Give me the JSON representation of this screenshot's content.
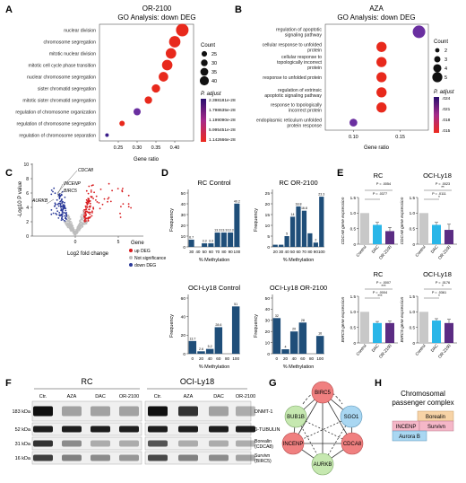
{
  "colors": {
    "bar_blue": "#1f4e79",
    "pt_red": "#e8291c",
    "pt_purple": "#6a2fa0",
    "ctrl_gray": "#c8c8c8",
    "dac_cyan": "#29b6e8",
    "or_purple": "#5b2c83",
    "up_red": "#d7191c",
    "down_blue": "#2b3a99",
    "ns_gray": "#bdbdbd",
    "net_red": "#f08080",
    "net_green": "#c6e8b0",
    "net_blue": "#a9d7f2",
    "cpc_blue": "#a9d7f2",
    "cpc_pink": "#f5b7c8",
    "cpc_orange": "#f7d3a6"
  },
  "panelA": {
    "letter": "A",
    "title1": "OR-2100",
    "title2": "GO Analysis: down DEG",
    "xlabel": "Gene ratio",
    "xticks": [
      "0.25",
      "0.30",
      "0.35",
      "0.40"
    ],
    "size_legend_title": "Count",
    "size_legend": [
      "25",
      "30",
      "35",
      "40"
    ],
    "color_legend_title": "P. adjust",
    "color_legend": [
      "2.398181e-28",
      "1.798635e-28",
      "1.199090e-28",
      "5.995451e-28",
      "1.142666e-28"
    ],
    "chart_data": {
      "type": "scatter",
      "title": "GO Analysis: down DEG",
      "xlabel": "Gene ratio",
      "xlim": [
        0.2,
        0.45
      ],
      "categories": [
        "nuclear division",
        "chromosome segregation",
        "mitotic nuclear division",
        "mitotic cell cycle phase transition",
        "nuclear chromosome segregation",
        "sister chromatid segregation",
        "mitotic sister chromatid segregation",
        "regulation of chromosome organization",
        "regulation of chromosome segregation",
        "regulation of chromosome separation"
      ],
      "x": [
        0.42,
        0.4,
        0.39,
        0.38,
        0.37,
        0.35,
        0.33,
        0.3,
        0.26,
        0.22
      ],
      "count": [
        44,
        40,
        37,
        37,
        34,
        30,
        27,
        26,
        20,
        14
      ],
      "color": [
        "#e8291c",
        "#e8291c",
        "#e8291c",
        "#e8291c",
        "#e8291c",
        "#e8291c",
        "#e8291c",
        "#6a2fa0",
        "#e8291c",
        "#3b1f8a"
      ]
    }
  },
  "panelB": {
    "letter": "B",
    "title1": "AZA",
    "title2": "GO Analysis: down DEG",
    "xlabel": "Gene ratio",
    "xticks": [
      "0.10",
      "0.15"
    ],
    "size_legend_title": "Count",
    "size_legend": [
      "2",
      "3",
      "4",
      "5"
    ],
    "color_legend_title": "P. adjust",
    "color_legend": [
      ".024",
      ".021",
      ".018",
      ".015"
    ],
    "chart_data": {
      "type": "scatter",
      "title": "GO Analysis: down DEG",
      "xlabel": "Gene ratio",
      "xlim": [
        0.07,
        0.18
      ],
      "categories": [
        "regulation of apoptotic signaling pathway",
        "cellular response to unfolded protein",
        "cellular response to topologically incorrect protein",
        "response to unfolded protein",
        "regulation of extrinsic apoptotic signaling pathway",
        "response to topologically incorrect protein",
        "endoplasmic reticulum unfolded protein response"
      ],
      "x": [
        0.17,
        0.13,
        0.13,
        0.13,
        0.13,
        0.13,
        0.1
      ],
      "count": [
        5,
        4,
        4,
        4,
        4,
        4,
        3
      ],
      "color": [
        "#6a2fa0",
        "#e8291c",
        "#e8291c",
        "#e8291c",
        "#e8291c",
        "#e8291c",
        "#6a2fa0"
      ]
    }
  },
  "panelC": {
    "letter": "C",
    "ylabel": "-Log10 P value",
    "xlabel": "Log2 fold change",
    "yticks": [
      "0",
      "2",
      "4",
      "6",
      "8",
      "10"
    ],
    "xticks": [
      "0",
      "5"
    ],
    "gene_labels": [
      "CDCA8",
      "INCENP",
      "BIRC5",
      "AURKB"
    ],
    "legend_title": "Gene",
    "legend": [
      "up DEG",
      "Not significance",
      "down DEG"
    ]
  },
  "panelD": {
    "letter": "D",
    "xlabel": "% Methylation",
    "ylabel": "Frequency",
    "charts": [
      {
        "title": "RC Control",
        "type": "bar",
        "categories": [
          "30",
          "40",
          "50",
          "60",
          "70",
          "80",
          "90",
          "100"
        ],
        "values": [
          6.7,
          0,
          3.3,
          3.3,
          13.3,
          13.3,
          13.3,
          40.2
        ],
        "labels": [
          "6.7",
          "",
          "3.3",
          "3.3",
          "13.3",
          "13.3",
          "13.3",
          "40.2"
        ],
        "ylim": [
          0,
          50
        ],
        "yticks": [
          "0",
          "10",
          "20",
          "30",
          "40",
          "50"
        ],
        "xticks": [
          "30",
          "40",
          "50",
          "60",
          "70",
          "80",
          "90",
          "100"
        ]
      },
      {
        "title": "RC OR-2100",
        "type": "bar",
        "categories": [
          "20",
          "30",
          "40",
          "50",
          "60",
          "70",
          "80",
          "90",
          "100"
        ],
        "values": [
          1,
          1,
          5,
          14,
          18.8,
          16.8,
          6.3,
          2,
          23.3
        ],
        "labels": [
          "",
          "",
          "5",
          "14",
          "18.8",
          "16.8",
          "",
          "2",
          "23.3"
        ],
        "ylim": [
          0,
          25
        ],
        "yticks": [
          "0",
          "5",
          "10",
          "15",
          "20",
          "25"
        ],
        "xticks": [
          "20",
          "30",
          "40",
          "50",
          "60",
          "70",
          "80",
          "90",
          "100"
        ]
      },
      {
        "title": "OCI-Ly18 Control",
        "type": "bar",
        "categories": [
          "0",
          "20",
          "40",
          "60",
          "80",
          "100"
        ],
        "values": [
          13.7,
          2.6,
          5.2,
          28.6,
          0,
          51
        ],
        "labels": [
          "13.7",
          "2.6",
          "5.2",
          "28.6",
          "",
          "51"
        ],
        "ylim": [
          0,
          60
        ],
        "yticks": [
          "0",
          "20",
          "40",
          "60"
        ],
        "xticks": [
          "0",
          "20",
          "40",
          "60",
          "80",
          "100"
        ]
      },
      {
        "title": "OCI-Ly18 OR-2100",
        "type": "bar",
        "categories": [
          "0",
          "20",
          "40",
          "60",
          "80",
          "100"
        ],
        "values": [
          32,
          4,
          20,
          28,
          0,
          16
        ],
        "labels": [
          "32",
          "4",
          "20",
          "28",
          "",
          "16"
        ],
        "ylim": [
          0,
          50
        ],
        "yticks": [
          "0",
          "10",
          "20",
          "30",
          "40",
          "50"
        ],
        "xticks": [
          "0",
          "20",
          "40",
          "60",
          "80",
          "100"
        ]
      }
    ]
  },
  "panelE": {
    "letter": "E",
    "xcats": [
      "Control",
      "DAC",
      "OR-2100"
    ],
    "charts": [
      {
        "title": "RC",
        "type": "bar",
        "ylabel": "CDCA8 gene expression",
        "categories": [
          "Control",
          "DAC",
          "OR-2100"
        ],
        "values": [
          1.0,
          0.62,
          0.42
        ],
        "errors": [
          0,
          0.08,
          0.12
        ],
        "ylim": [
          0,
          1.5
        ],
        "yticks": [
          "0",
          "0.5",
          "1.0",
          "1.5"
        ],
        "pvals": [
          "P = .0054",
          "P = .0377"
        ],
        "stars": [
          "",
          ""
        ]
      },
      {
        "title": "OCI-Ly18",
        "type": "bar",
        "ylabel": "CDCA8 gene expression",
        "categories": [
          "Control",
          "DAC",
          "OR-2100"
        ],
        "values": [
          1.0,
          0.62,
          0.46
        ],
        "errors": [
          0,
          0.08,
          0.18
        ],
        "ylim": [
          0,
          1.5
        ],
        "yticks": [
          "0",
          "0.5",
          "1.0",
          "1.5"
        ],
        "pvals": [
          "P = .0023",
          "P = .0111"
        ],
        "stars": [
          "**",
          "*"
        ]
      },
      {
        "title": "RC",
        "type": "bar",
        "ylabel": "BIRC5 gene expression",
        "categories": [
          "Control",
          "DAC",
          "OR-2100"
        ],
        "values": [
          1.0,
          0.64,
          0.64
        ],
        "errors": [
          0,
          0.05,
          0.06
        ],
        "ylim": [
          0,
          1.5
        ],
        "yticks": [
          "0",
          "0.5",
          "1.0",
          "1.5"
        ],
        "pvals": [
          "P = .0007",
          "P = .0004"
        ],
        "stars": [
          "***",
          "***"
        ]
      },
      {
        "title": "OCI-Ly18",
        "type": "bar",
        "ylabel": "BIRC5 gene expression",
        "categories": [
          "Control",
          "DAC",
          "OR-2100"
        ],
        "values": [
          1.0,
          0.72,
          0.64
        ],
        "errors": [
          0,
          0.06,
          0.12
        ],
        "ylim": [
          0,
          1.5
        ],
        "yticks": [
          "0",
          "0.5",
          "1.0",
          "1.5"
        ],
        "pvals": [
          "P = .0176",
          "P = .0361"
        ],
        "stars": [
          "*",
          "*"
        ]
      }
    ]
  },
  "panelF": {
    "letter": "F",
    "group_rc": "RC",
    "group_oci": "OCI-Ly18",
    "lanes": [
      "Ctr.",
      "AZA",
      "DAC",
      "OR-2100"
    ],
    "kda": [
      "183 kDa",
      "52 kDa",
      "31 kDa",
      "16 kDa"
    ],
    "proteins": [
      "DNMT-1",
      "β-TUBULIN",
      "Borealin (CDCA8)",
      "Survivn (BIRC5)"
    ]
  },
  "panelG": {
    "letter": "G",
    "nodes": [
      "BIRC5",
      "BUB1B",
      "SGO1",
      "INCENP",
      "CDCA8",
      "AURKB"
    ]
  },
  "panelH": {
    "letter": "H",
    "title1": "Chromosomal",
    "title2": "passenger complex",
    "members": [
      "Borealin",
      "INCENP",
      "Survivn",
      "Aurora B"
    ]
  }
}
